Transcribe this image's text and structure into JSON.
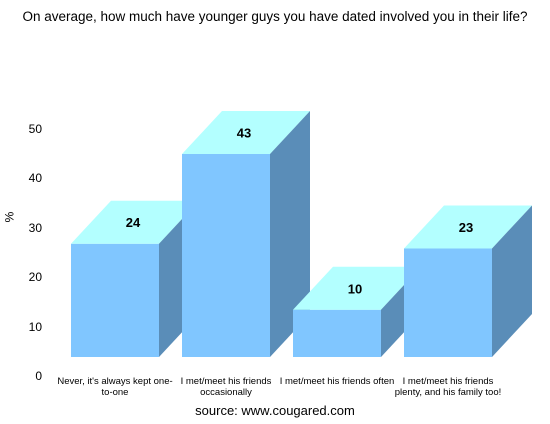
{
  "chart_data": {
    "type": "bar",
    "title": "On average, how much have younger guys you have dated involved you in their life?",
    "ylabel": "%",
    "xlabel": "",
    "categories": [
      "Never, it's always kept one-to-one",
      "I met/meet his friends occasionally",
      "I met/meet his friends often",
      "I met/meet his friends plenty, and his family too!"
    ],
    "values": [
      24,
      43,
      10,
      23
    ],
    "ylim": [
      0,
      50
    ],
    "yticks": [
      0,
      10,
      20,
      30,
      40,
      50
    ],
    "grid": false,
    "legend": "none",
    "source": "source: www.cougared.com",
    "colors": {
      "front": "#80c6ff",
      "top": "#b3ffff",
      "side": "#5a8db8"
    }
  }
}
